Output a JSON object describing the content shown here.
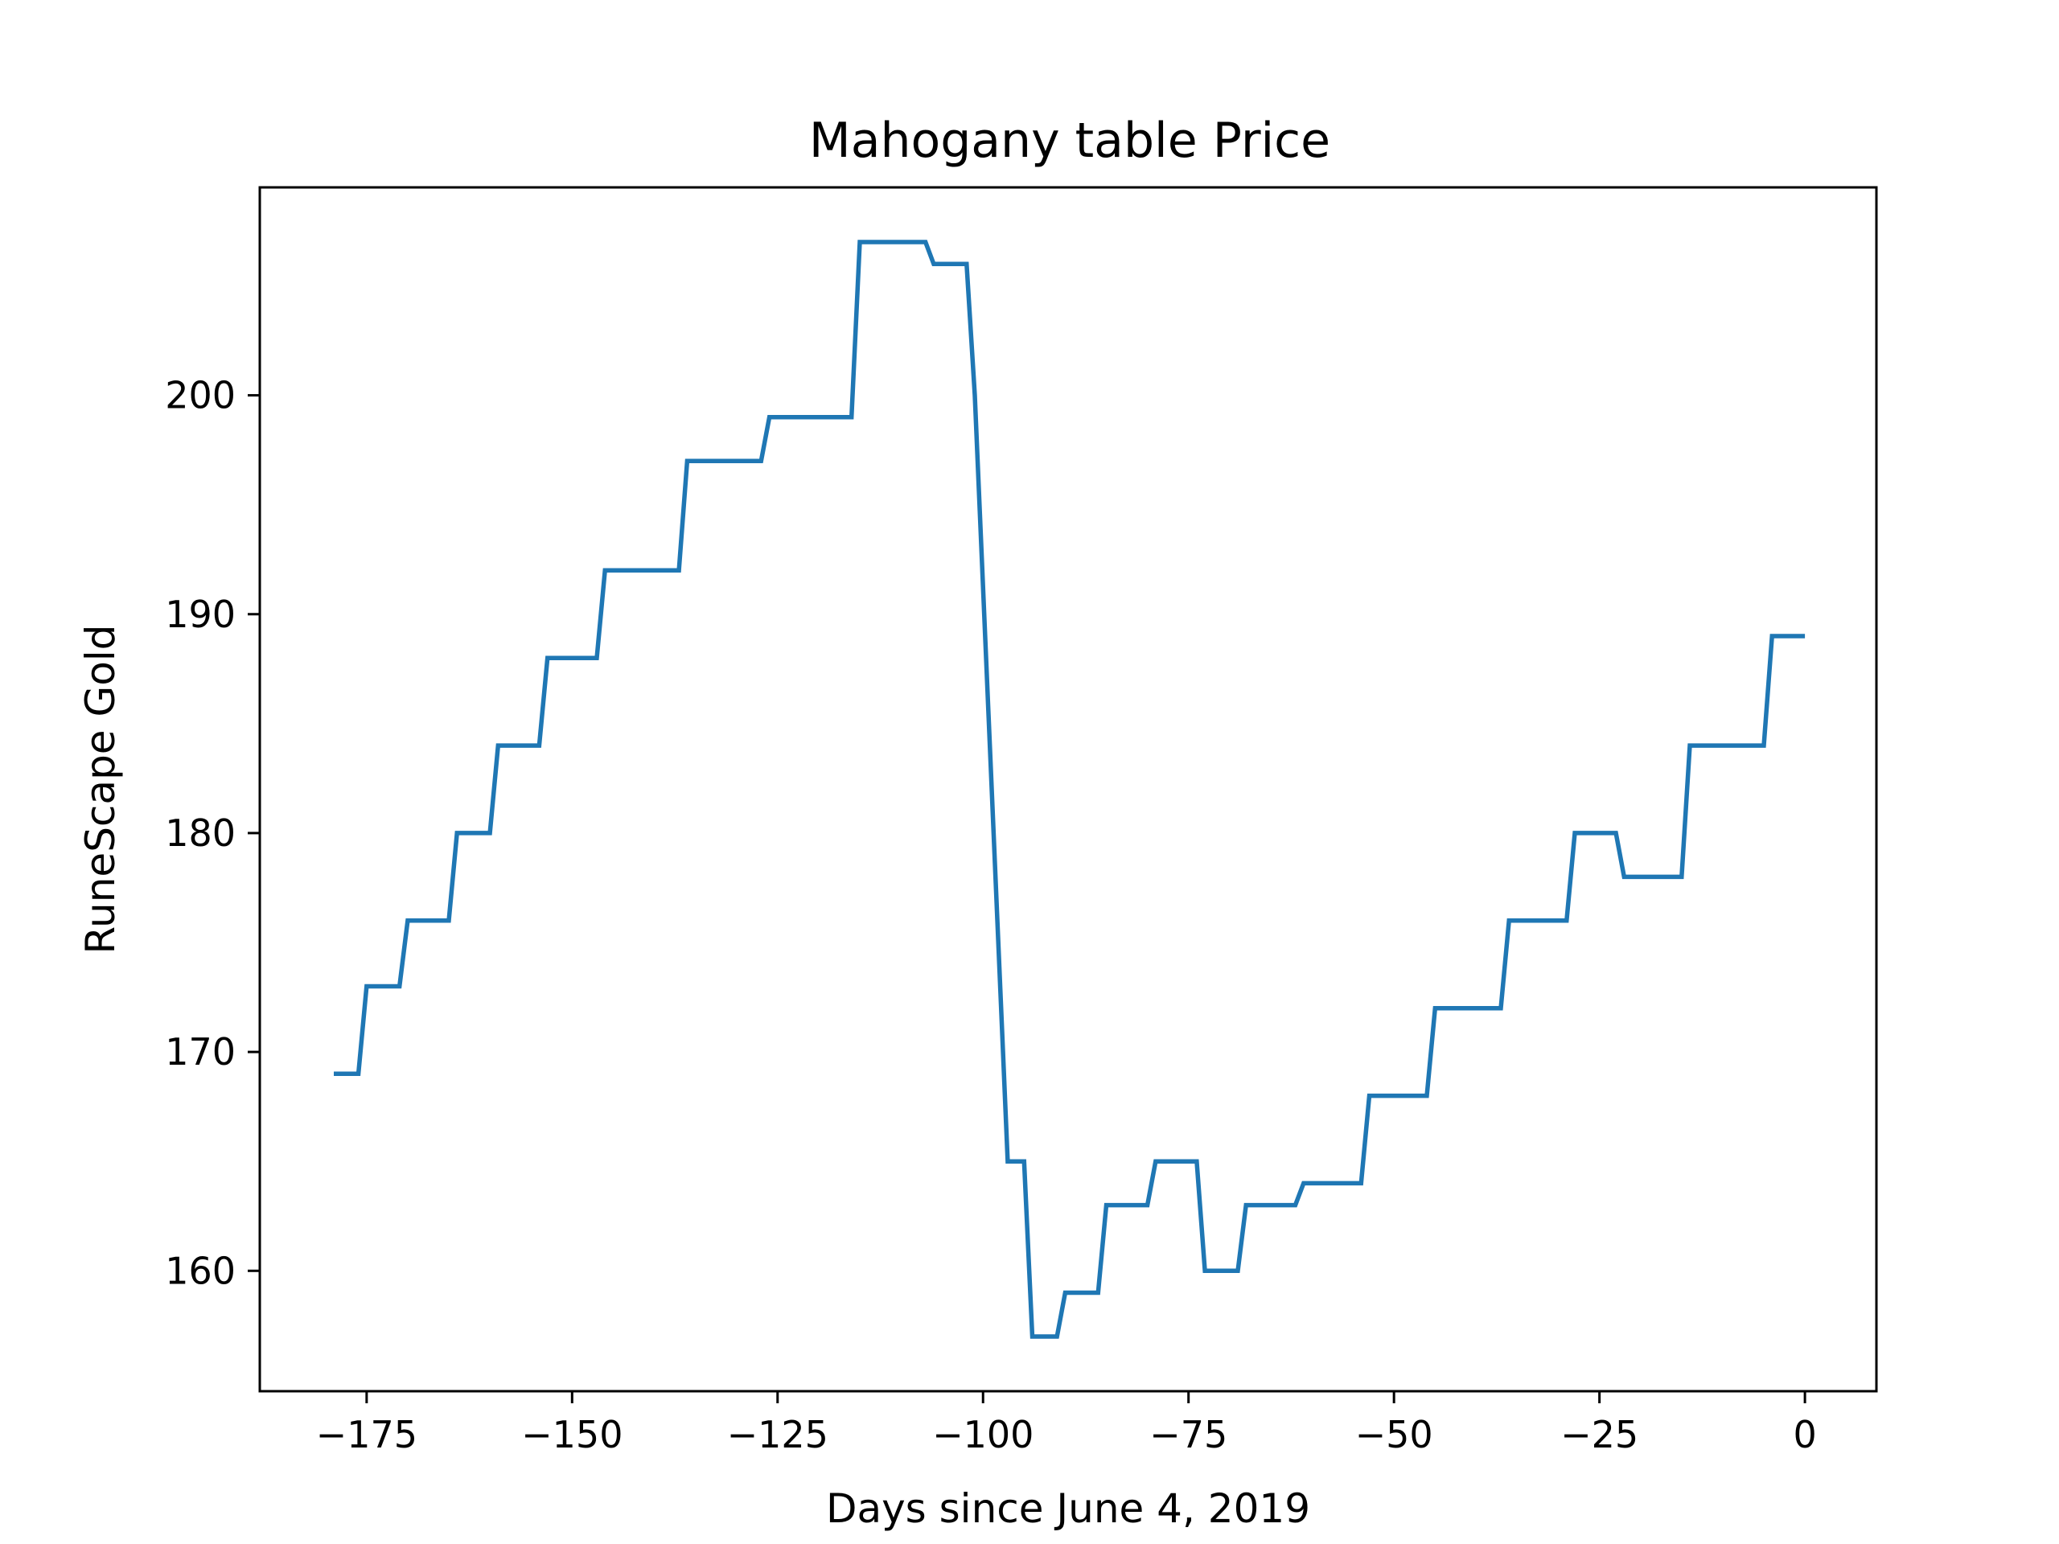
{
  "chart_data": {
    "type": "line",
    "title": "Mahogany table Price",
    "xlabel": "Days since June 4, 2019",
    "ylabel": "RuneScape Gold",
    "xlim": [
      -188,
      8.7
    ],
    "ylim": [
      154.5,
      209.5
    ],
    "xticks": [
      -175,
      -150,
      -125,
      -100,
      -75,
      -50,
      -25,
      0
    ],
    "xtick_labels": [
      "−175",
      "−150",
      "−125",
      "−100",
      "−75",
      "−50",
      "−25",
      "0"
    ],
    "yticks": [
      160,
      170,
      180,
      190,
      200
    ],
    "ytick_labels": [
      "160",
      "170",
      "180",
      "190",
      "200"
    ],
    "grid": false,
    "series": [
      {
        "color": "#1f77b4",
        "x": [
          -179,
          -176,
          -175,
          -171,
          -170,
          -165,
          -164,
          -160,
          -159,
          -154,
          -153,
          -147,
          -146,
          -137,
          -136,
          -127,
          -126,
          -116,
          -115,
          -107,
          -106,
          -102,
          -101,
          -97,
          -95,
          -94,
          -91,
          -90,
          -86,
          -85,
          -80,
          -79,
          -74,
          -73,
          -69,
          -68,
          -62,
          -61,
          -54,
          -53,
          -46,
          -45,
          -37,
          -36,
          -29,
          -28,
          -23,
          -22,
          -15,
          -14,
          -5,
          -4,
          0
        ],
        "y": [
          169,
          169,
          173,
          173,
          176,
          176,
          180,
          180,
          184,
          184,
          188,
          188,
          192,
          192,
          197,
          197,
          199,
          199,
          207,
          207,
          206,
          206,
          200,
          165,
          165,
          157,
          157,
          159,
          159,
          163,
          163,
          165,
          165,
          160,
          160,
          163,
          163,
          164,
          164,
          168,
          168,
          172,
          172,
          176,
          176,
          180,
          180,
          178,
          178,
          184,
          184,
          189,
          189
        ]
      }
    ]
  }
}
